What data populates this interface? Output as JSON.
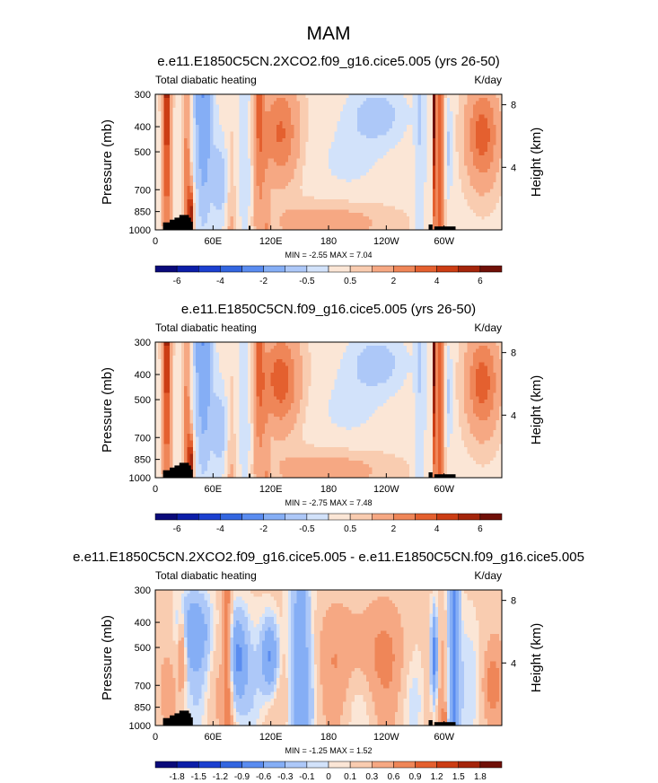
{
  "figure": {
    "title": "MAM",
    "left_label": "Total diabatic heating",
    "units": "K/day",
    "y_label": "Pressure (mb)",
    "y2_label": "Height (km)"
  },
  "chart_data": [
    {
      "type": "heatmap",
      "title": "e.e11.E1850C5CN.2XCO2.f09_g16.cice5.005 (yrs 26-50)",
      "variable": "Total diabatic heating",
      "units": "K/day",
      "stats": "MIN =  -2.55  MAX =  7.04",
      "min": -2.55,
      "max": 7.04,
      "xlabel": "",
      "ylabel": "Pressure (mb)",
      "y2label": "Height (km)",
      "x_ticks": [
        "0",
        "60E",
        "120E",
        "180",
        "120W",
        "60W"
      ],
      "x_tick_lon": [
        0,
        60,
        120,
        180,
        240,
        300
      ],
      "xlim": [
        0,
        360
      ],
      "y_ticks": [
        "300",
        "400",
        "500",
        "700",
        "850",
        "1000"
      ],
      "y_tick_p": [
        300,
        400,
        500,
        700,
        850,
        1000
      ],
      "ylim": [
        1000,
        300
      ],
      "y2_ticks": [
        "8",
        "4"
      ],
      "y2_tick_km": [
        8,
        4
      ],
      "colorbar_labels": [
        "-6",
        "-4",
        "-2",
        "-0.5",
        "0.5",
        "2",
        "4",
        "6"
      ],
      "colorbar_levels": [
        -7,
        -6,
        -5,
        -4,
        -3,
        -2,
        -1,
        -0.5,
        0,
        0.5,
        1,
        2,
        3,
        4,
        5,
        6,
        7
      ]
    },
    {
      "type": "heatmap",
      "title": "e.e11.E1850C5CN.f09_g16.cice5.005 (yrs 26-50)",
      "variable": "Total diabatic heating",
      "units": "K/day",
      "stats": "MIN =  -2.75  MAX =  7.48",
      "min": -2.75,
      "max": 7.48,
      "xlabel": "",
      "ylabel": "Pressure (mb)",
      "y2label": "Height (km)",
      "x_ticks": [
        "0",
        "60E",
        "120E",
        "180",
        "120W",
        "60W"
      ],
      "x_tick_lon": [
        0,
        60,
        120,
        180,
        240,
        300
      ],
      "xlim": [
        0,
        360
      ],
      "y_ticks": [
        "300",
        "400",
        "500",
        "700",
        "850",
        "1000"
      ],
      "y_tick_p": [
        300,
        400,
        500,
        700,
        850,
        1000
      ],
      "ylim": [
        1000,
        300
      ],
      "y2_ticks": [
        "8",
        "4"
      ],
      "y2_tick_km": [
        8,
        4
      ],
      "colorbar_labels": [
        "-6",
        "-4",
        "-2",
        "-0.5",
        "0.5",
        "2",
        "4",
        "6"
      ],
      "colorbar_levels": [
        -7,
        -6,
        -5,
        -4,
        -3,
        -2,
        -1,
        -0.5,
        0,
        0.5,
        1,
        2,
        3,
        4,
        5,
        6,
        7
      ]
    },
    {
      "type": "heatmap",
      "title": "e.e11.E1850C5CN.2XCO2.f09_g16.cice5.005 - e.e11.E1850C5CN.f09_g16.cice5.005",
      "variable": "Total diabatic heating",
      "units": "K/day",
      "stats": "MIN =  -1.25  MAX =  1.52",
      "min": -1.25,
      "max": 1.52,
      "xlabel": "",
      "ylabel": "Pressure (mb)",
      "y2label": "Height (km)",
      "x_ticks": [
        "0",
        "60E",
        "120E",
        "180",
        "120W",
        "60W"
      ],
      "x_tick_lon": [
        0,
        60,
        120,
        180,
        240,
        300
      ],
      "xlim": [
        0,
        360
      ],
      "y_ticks": [
        "300",
        "400",
        "500",
        "700",
        "850",
        "1000"
      ],
      "y_tick_p": [
        300,
        400,
        500,
        700,
        850,
        1000
      ],
      "ylim": [
        1000,
        300
      ],
      "y2_ticks": [
        "8",
        "4"
      ],
      "y2_tick_km": [
        8,
        4
      ],
      "colorbar_labels": [
        "-1.8",
        "-1.5",
        "-1.2",
        "-0.9",
        "-0.6",
        "-0.3",
        "-0.1",
        "0",
        "0.1",
        "0.3",
        "0.6",
        "0.9",
        "1.2",
        "1.5",
        "1.8"
      ],
      "colorbar_levels": [
        -2.1,
        -1.8,
        -1.5,
        -1.2,
        -0.9,
        -0.6,
        -0.3,
        -0.1,
        0,
        0.1,
        0.3,
        0.6,
        0.9,
        1.2,
        1.5,
        1.8,
        2.1
      ]
    }
  ],
  "colormap": [
    "#0a0a7a",
    "#0c1ea8",
    "#1c40d0",
    "#3366e0",
    "#5a8cf0",
    "#85aef5",
    "#adc8f8",
    "#d2e2fa",
    "#fbe6d6",
    "#f9ccb0",
    "#f6a883",
    "#ef8658",
    "#e4602f",
    "#cc3d14",
    "#a4250b",
    "#701008"
  ]
}
